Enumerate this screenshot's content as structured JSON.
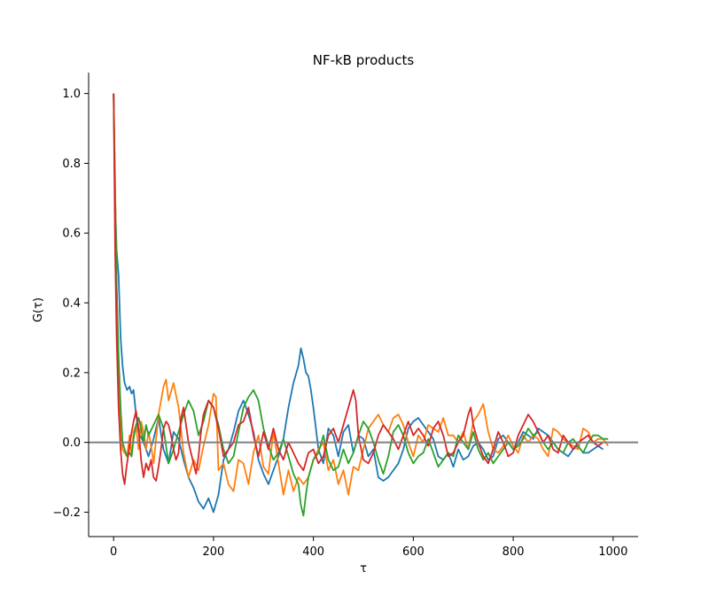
{
  "chart_data": {
    "type": "line",
    "title": "NF-kB products",
    "xlabel": "τ",
    "ylabel": "G(τ)",
    "xlim": [
      -50,
      1050
    ],
    "ylim": [
      -0.27,
      1.06
    ],
    "xticks": [
      0,
      200,
      400,
      600,
      800,
      1000
    ],
    "xtick_labels": [
      "0",
      "200",
      "400",
      "600",
      "800",
      "1000"
    ],
    "yticks": [
      -0.2,
      0.0,
      0.2,
      0.4,
      0.6,
      0.8,
      1.0
    ],
    "ytick_labels": [
      "−0.2",
      "0.0",
      "0.2",
      "0.4",
      "0.6",
      "0.8",
      "1.0"
    ],
    "grid": false,
    "spines": "left-bottom",
    "reference_line": {
      "y": 0,
      "color": "#808080"
    },
    "series": [
      {
        "color": "#1f77b4",
        "x": [
          0,
          3,
          6,
          10,
          14,
          18,
          22,
          27,
          32,
          36,
          40,
          45,
          50,
          60,
          70,
          80,
          90,
          100,
          110,
          120,
          130,
          140,
          150,
          160,
          170,
          180,
          190,
          200,
          210,
          220,
          230,
          240,
          250,
          260,
          270,
          280,
          290,
          300,
          310,
          320,
          330,
          340,
          350,
          360,
          370,
          375,
          380,
          385,
          390,
          395,
          400,
          410,
          420,
          430,
          440,
          450,
          460,
          470,
          480,
          490,
          500,
          510,
          520,
          530,
          540,
          550,
          560,
          570,
          580,
          590,
          600,
          610,
          620,
          630,
          640,
          650,
          660,
          670,
          680,
          690,
          700,
          710,
          720,
          730,
          740,
          750,
          760,
          770,
          780,
          790,
          800,
          810,
          820,
          830,
          840,
          850,
          860,
          870,
          880,
          890,
          900,
          910,
          920,
          930,
          940,
          950,
          960,
          970,
          980
        ],
        "y": [
          1.0,
          0.7,
          0.55,
          0.48,
          0.3,
          0.22,
          0.17,
          0.15,
          0.16,
          0.14,
          0.15,
          0.08,
          0.03,
          0.0,
          -0.04,
          0.01,
          0.07,
          -0.02,
          -0.06,
          0.03,
          0.01,
          -0.05,
          -0.1,
          -0.13,
          -0.17,
          -0.19,
          -0.16,
          -0.2,
          -0.15,
          -0.05,
          -0.02,
          0.03,
          0.09,
          0.12,
          0.08,
          0.03,
          -0.05,
          -0.09,
          -0.12,
          -0.08,
          -0.04,
          0.01,
          0.1,
          0.17,
          0.22,
          0.27,
          0.24,
          0.2,
          0.19,
          0.15,
          0.1,
          -0.02,
          -0.06,
          0.04,
          0.02,
          -0.04,
          0.03,
          0.05,
          -0.03,
          0.02,
          0.01,
          -0.04,
          -0.02,
          -0.1,
          -0.11,
          -0.1,
          -0.08,
          -0.06,
          -0.02,
          0.04,
          0.06,
          0.07,
          0.05,
          0.03,
          0.01,
          -0.04,
          -0.05,
          -0.03,
          -0.07,
          -0.02,
          -0.05,
          -0.04,
          -0.01,
          0.0,
          -0.02,
          -0.05,
          -0.04,
          0.01,
          0.02,
          0.0,
          -0.02,
          0.0,
          0.03,
          0.02,
          0.01,
          0.04,
          0.03,
          0.02,
          0.0,
          -0.02,
          -0.03,
          -0.04,
          -0.02,
          -0.01,
          -0.03,
          -0.03,
          -0.02,
          -0.01,
          -0.02
        ]
      },
      {
        "color": "#ff7f0e",
        "x": [
          0,
          3,
          6,
          10,
          14,
          18,
          22,
          27,
          32,
          36,
          40,
          45,
          50,
          55,
          60,
          65,
          70,
          75,
          80,
          90,
          100,
          105,
          110,
          120,
          130,
          140,
          150,
          160,
          170,
          180,
          190,
          200,
          205,
          210,
          220,
          230,
          240,
          250,
          260,
          270,
          280,
          290,
          300,
          310,
          320,
          330,
          340,
          350,
          360,
          370,
          380,
          390,
          400,
          410,
          420,
          430,
          440,
          450,
          460,
          470,
          480,
          490,
          500,
          510,
          520,
          530,
          540,
          550,
          560,
          570,
          580,
          590,
          600,
          610,
          620,
          630,
          640,
          650,
          660,
          670,
          680,
          690,
          700,
          710,
          720,
          730,
          740,
          750,
          760,
          770,
          780,
          790,
          800,
          810,
          820,
          830,
          840,
          850,
          860,
          870,
          880,
          890,
          900,
          910,
          920,
          930,
          940,
          950,
          960,
          970,
          980,
          990
        ],
        "y": [
          1.0,
          0.75,
          0.45,
          0.2,
          0.05,
          -0.02,
          -0.03,
          -0.04,
          0.02,
          -0.04,
          0.03,
          0.05,
          -0.02,
          0.06,
          0.03,
          -0.02,
          0.03,
          -0.01,
          -0.06,
          0.08,
          0.16,
          0.18,
          0.12,
          0.17,
          0.1,
          -0.03,
          -0.1,
          -0.05,
          -0.08,
          -0.01,
          0.05,
          0.14,
          0.13,
          -0.08,
          -0.06,
          -0.12,
          -0.14,
          -0.05,
          -0.06,
          -0.12,
          -0.03,
          0.02,
          -0.07,
          -0.09,
          0.03,
          -0.06,
          -0.15,
          -0.08,
          -0.14,
          -0.1,
          -0.12,
          -0.1,
          -0.05,
          -0.02,
          0.0,
          -0.08,
          -0.05,
          -0.12,
          -0.08,
          -0.15,
          -0.07,
          -0.08,
          -0.02,
          0.04,
          0.06,
          0.08,
          0.05,
          0.03,
          0.07,
          0.08,
          0.05,
          0.0,
          -0.04,
          0.02,
          0.0,
          0.05,
          0.04,
          0.03,
          0.07,
          0.02,
          0.02,
          0.0,
          0.03,
          -0.02,
          0.06,
          0.08,
          0.11,
          0.03,
          -0.02,
          -0.03,
          -0.01,
          0.02,
          -0.01,
          -0.03,
          0.02,
          0.0,
          0.02,
          0.01,
          -0.02,
          -0.04,
          0.04,
          0.03,
          0.01,
          0.0,
          -0.01,
          -0.02,
          0.04,
          0.03,
          0.0,
          0.01,
          0.01,
          -0.01
        ]
      },
      {
        "color": "#2ca02c",
        "x": [
          0,
          3,
          6,
          10,
          14,
          18,
          22,
          27,
          32,
          36,
          40,
          45,
          50,
          55,
          60,
          65,
          70,
          80,
          90,
          100,
          110,
          120,
          130,
          140,
          150,
          160,
          170,
          180,
          190,
          200,
          210,
          220,
          230,
          240,
          250,
          260,
          270,
          280,
          290,
          300,
          310,
          320,
          330,
          340,
          350,
          360,
          370,
          375,
          380,
          385,
          390,
          400,
          410,
          420,
          430,
          440,
          450,
          460,
          470,
          480,
          490,
          500,
          510,
          520,
          530,
          540,
          550,
          560,
          570,
          580,
          590,
          600,
          610,
          620,
          630,
          640,
          650,
          660,
          670,
          680,
          690,
          700,
          710,
          720,
          730,
          740,
          750,
          760,
          770,
          780,
          790,
          800,
          810,
          820,
          830,
          840,
          850,
          860,
          870,
          880,
          890,
          900,
          910,
          920,
          930,
          940,
          950,
          960,
          970,
          980,
          990
        ],
        "y": [
          1.0,
          0.7,
          0.45,
          0.25,
          0.1,
          0.0,
          -0.02,
          -0.04,
          -0.03,
          -0.04,
          0.01,
          0.05,
          0.07,
          0.04,
          0.0,
          0.05,
          0.02,
          0.05,
          0.08,
          0.04,
          -0.06,
          -0.02,
          0.03,
          0.08,
          0.12,
          0.09,
          0.02,
          0.06,
          0.12,
          0.1,
          0.05,
          -0.02,
          -0.06,
          -0.04,
          0.03,
          0.1,
          0.13,
          0.15,
          0.12,
          0.04,
          -0.01,
          -0.05,
          -0.03,
          0.01,
          -0.04,
          -0.09,
          -0.12,
          -0.18,
          -0.21,
          -0.15,
          -0.1,
          -0.05,
          -0.03,
          0.02,
          -0.05,
          -0.08,
          -0.07,
          -0.02,
          -0.06,
          -0.03,
          0.02,
          0.06,
          0.04,
          0.0,
          -0.05,
          -0.09,
          -0.04,
          0.03,
          0.05,
          0.02,
          -0.03,
          -0.06,
          -0.04,
          -0.03,
          0.01,
          -0.03,
          -0.07,
          -0.05,
          -0.03,
          -0.04,
          0.02,
          0.0,
          -0.02,
          0.03,
          -0.02,
          -0.05,
          -0.03,
          -0.06,
          -0.04,
          -0.02,
          0.0,
          -0.02,
          -0.01,
          0.01,
          0.04,
          0.02,
          0.03,
          0.0,
          -0.02,
          0.0,
          -0.02,
          -0.03,
          0.0,
          0.01,
          -0.01,
          -0.03,
          0.0,
          0.02,
          0.02,
          0.01,
          0.01
        ]
      },
      {
        "color": "#d62728",
        "x": [
          0,
          3,
          6,
          10,
          14,
          18,
          22,
          26,
          30,
          35,
          40,
          45,
          50,
          55,
          60,
          65,
          70,
          75,
          80,
          85,
          90,
          95,
          100,
          105,
          110,
          115,
          120,
          125,
          130,
          135,
          140,
          145,
          150,
          155,
          160,
          165,
          170,
          175,
          180,
          190,
          200,
          210,
          220,
          230,
          240,
          250,
          260,
          270,
          280,
          290,
          300,
          310,
          320,
          330,
          340,
          350,
          360,
          370,
          380,
          390,
          400,
          410,
          420,
          430,
          440,
          450,
          460,
          470,
          480,
          485,
          490,
          500,
          510,
          520,
          530,
          540,
          550,
          560,
          570,
          580,
          590,
          600,
          610,
          620,
          630,
          640,
          650,
          660,
          670,
          680,
          690,
          700,
          710,
          715,
          720,
          730,
          740,
          750,
          760,
          770,
          780,
          790,
          800,
          810,
          820,
          830,
          840,
          850,
          860,
          870,
          880,
          890,
          900,
          910,
          920,
          930,
          940,
          950,
          960,
          970,
          980
        ],
        "y": [
          1.0,
          0.55,
          0.3,
          0.1,
          -0.02,
          -0.09,
          -0.12,
          -0.07,
          -0.03,
          0.02,
          0.06,
          0.09,
          0.04,
          -0.05,
          -0.1,
          -0.06,
          -0.08,
          -0.05,
          -0.1,
          -0.11,
          -0.07,
          -0.02,
          0.04,
          0.06,
          0.05,
          0.02,
          -0.02,
          -0.05,
          -0.03,
          0.07,
          0.1,
          0.05,
          0.0,
          -0.03,
          -0.06,
          -0.09,
          -0.04,
          0.03,
          0.08,
          0.12,
          0.1,
          0.04,
          -0.04,
          -0.02,
          0.0,
          0.05,
          0.06,
          0.1,
          0.02,
          -0.04,
          0.03,
          -0.02,
          0.04,
          -0.02,
          -0.05,
          0.0,
          -0.03,
          -0.06,
          -0.08,
          -0.03,
          -0.02,
          -0.06,
          -0.04,
          0.02,
          0.04,
          0.0,
          0.05,
          0.1,
          0.15,
          0.12,
          0.02,
          -0.05,
          -0.06,
          -0.03,
          0.02,
          0.05,
          0.03,
          0.01,
          -0.02,
          0.02,
          0.06,
          0.02,
          0.04,
          0.02,
          -0.01,
          0.04,
          0.06,
          0.02,
          -0.04,
          -0.03,
          0.0,
          0.02,
          0.08,
          0.1,
          0.05,
          0.0,
          -0.04,
          -0.06,
          -0.02,
          0.03,
          0.0,
          -0.04,
          -0.03,
          0.02,
          0.05,
          0.08,
          0.06,
          0.03,
          0.0,
          0.02,
          -0.02,
          -0.03,
          0.02,
          0.0,
          -0.02,
          0.0,
          0.01,
          0.02,
          0.0,
          -0.01,
          0.0
        ]
      }
    ]
  }
}
